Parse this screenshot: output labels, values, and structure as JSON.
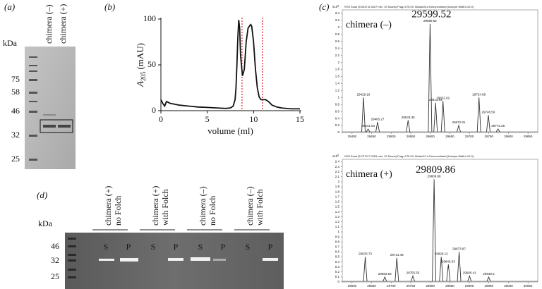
{
  "gel_a": {
    "label": "(a)",
    "unit": "kDa",
    "markers": [
      "75",
      "58",
      "46",
      "32",
      "25"
    ],
    "lanes": [
      "chimera (–)",
      "chimera (+)"
    ]
  },
  "gel_d": {
    "label": "(d)",
    "unit": "kDa",
    "markers": [
      "46",
      "32",
      "25"
    ],
    "groups": [
      {
        "name": [
          "chimera (+)",
          "no Folch"
        ],
        "lanes": [
          "S",
          "P"
        ]
      },
      {
        "name": [
          "chimera (+)",
          "with Folch"
        ],
        "lanes": [
          "S",
          "P"
        ]
      },
      {
        "name": [
          "chimera (–)",
          "no Folch"
        ],
        "lanes": [
          "S",
          "P"
        ]
      },
      {
        "name": [
          "chimera (–)",
          "with Folch"
        ],
        "lanes": [
          "S",
          "P"
        ]
      }
    ]
  },
  "chart_data": [
    {
      "type": "line",
      "label": "(b)",
      "xlabel": "volume (ml)",
      "ylabel": {
        "main": "A",
        "sub": "205",
        "rest": "(mAU)"
      },
      "x": [
        0,
        0.2,
        0.4,
        0.6,
        1,
        1.5,
        2,
        3,
        4,
        5,
        6,
        7,
        7.5,
        7.8,
        8.0,
        8.1,
        8.2,
        8.3,
        8.4,
        8.5,
        8.6,
        8.8,
        9.0,
        9.2,
        9.4,
        9.6,
        9.7,
        9.8,
        10.0,
        10.2,
        10.4,
        10.6,
        10.8,
        11.0,
        11.3,
        11.6,
        12.0,
        12.5,
        13,
        14,
        15
      ],
      "series": [
        {
          "color": "#111111",
          "values": [
            12,
            8,
            5,
            10,
            8,
            7,
            6,
            5,
            4,
            3.5,
            3,
            2.5,
            3,
            5,
            12,
            25,
            50,
            80,
            99,
            90,
            60,
            38,
            45,
            75,
            90,
            93,
            94,
            92,
            75,
            45,
            25,
            15,
            12,
            12,
            12,
            10,
            6,
            4,
            3,
            2,
            2
          ]
        }
      ],
      "fraction_lines": [
        8.75,
        10.95
      ],
      "fraction_color": "#e02020",
      "xlim": [
        0,
        15
      ],
      "ylim": [
        0,
        100
      ],
      "xticks": [
        0,
        5,
        10,
        15
      ],
      "yticks": [
        0,
        50,
        100
      ]
    },
    {
      "type": "spectrum",
      "label": "(c)",
      "header": "+ESI Scan (5.0047-6.3027 min, 19 Scans) Frag=175.0V 16clan06.d  Deconvoluted (Isotope Width=10.0)",
      "scale_label": "x10",
      "scale_exp": "5",
      "sample": "chimera (–)",
      "main_label": "29599.52",
      "main_index": 4,
      "color": "#333333",
      "x": [
        29429.16,
        29465.27,
        29441.03,
        29543.35,
        29599.52,
        29613.64,
        29632.62,
        29672.81,
        29724.69,
        29748.56,
        29773.36
      ],
      "values": [
        1.0,
        0.3,
        0.1,
        0.35,
        3.1,
        0.85,
        0.9,
        0.2,
        1.0,
        0.5,
        0.1
      ],
      "xlim": [
        29375,
        29875
      ],
      "ylim": [
        0,
        3.5
      ],
      "xticks": [
        29400,
        29450,
        29500,
        29550,
        29600,
        29650,
        29700,
        29750,
        29800,
        29850
      ],
      "yticks": [
        0,
        0.2,
        0.4,
        0.6,
        0.8,
        1,
        1.2,
        1.4,
        1.6,
        1.8,
        2,
        2.2,
        2.4,
        2.6,
        2.8,
        3,
        3.2,
        3.4
      ]
    },
    {
      "type": "spectrum",
      "header": "+ESI Scan (5.7573-7.0929 min, 19 Scans) Frag=175.0V 16clan07.d  Deconvoluted (Isotope Width=10.0)",
      "scale_label": "x10",
      "scale_exp": "5",
      "sample": "chimera (+)",
      "main_label": "29809.86",
      "main_index": 4,
      "color": "#333333",
      "x": [
        29633.73,
        29683.83,
        29714.48,
        29755.55,
        29809.86,
        29828.12,
        29846.33,
        29873.87,
        29900.41,
        29949.5
      ],
      "values": [
        0.5,
        0.1,
        0.48,
        0.12,
        2.05,
        0.5,
        0.35,
        0.6,
        0.12,
        0.1
      ],
      "xlim": [
        29575,
        30075
      ],
      "ylim": [
        0,
        2.45
      ],
      "xticks": [
        29600,
        29650,
        29700,
        29750,
        29800,
        29850,
        29900,
        29950,
        30000,
        30050
      ],
      "yticks": [
        0,
        0.1,
        0.2,
        0.3,
        0.4,
        0.5,
        0.6,
        0.7,
        0.8,
        0.9,
        1,
        1.1,
        1.2,
        1.3,
        1.4,
        1.5,
        1.6,
        1.7,
        1.8,
        1.9,
        2,
        2.1,
        2.2,
        2.3,
        2.4
      ]
    }
  ]
}
